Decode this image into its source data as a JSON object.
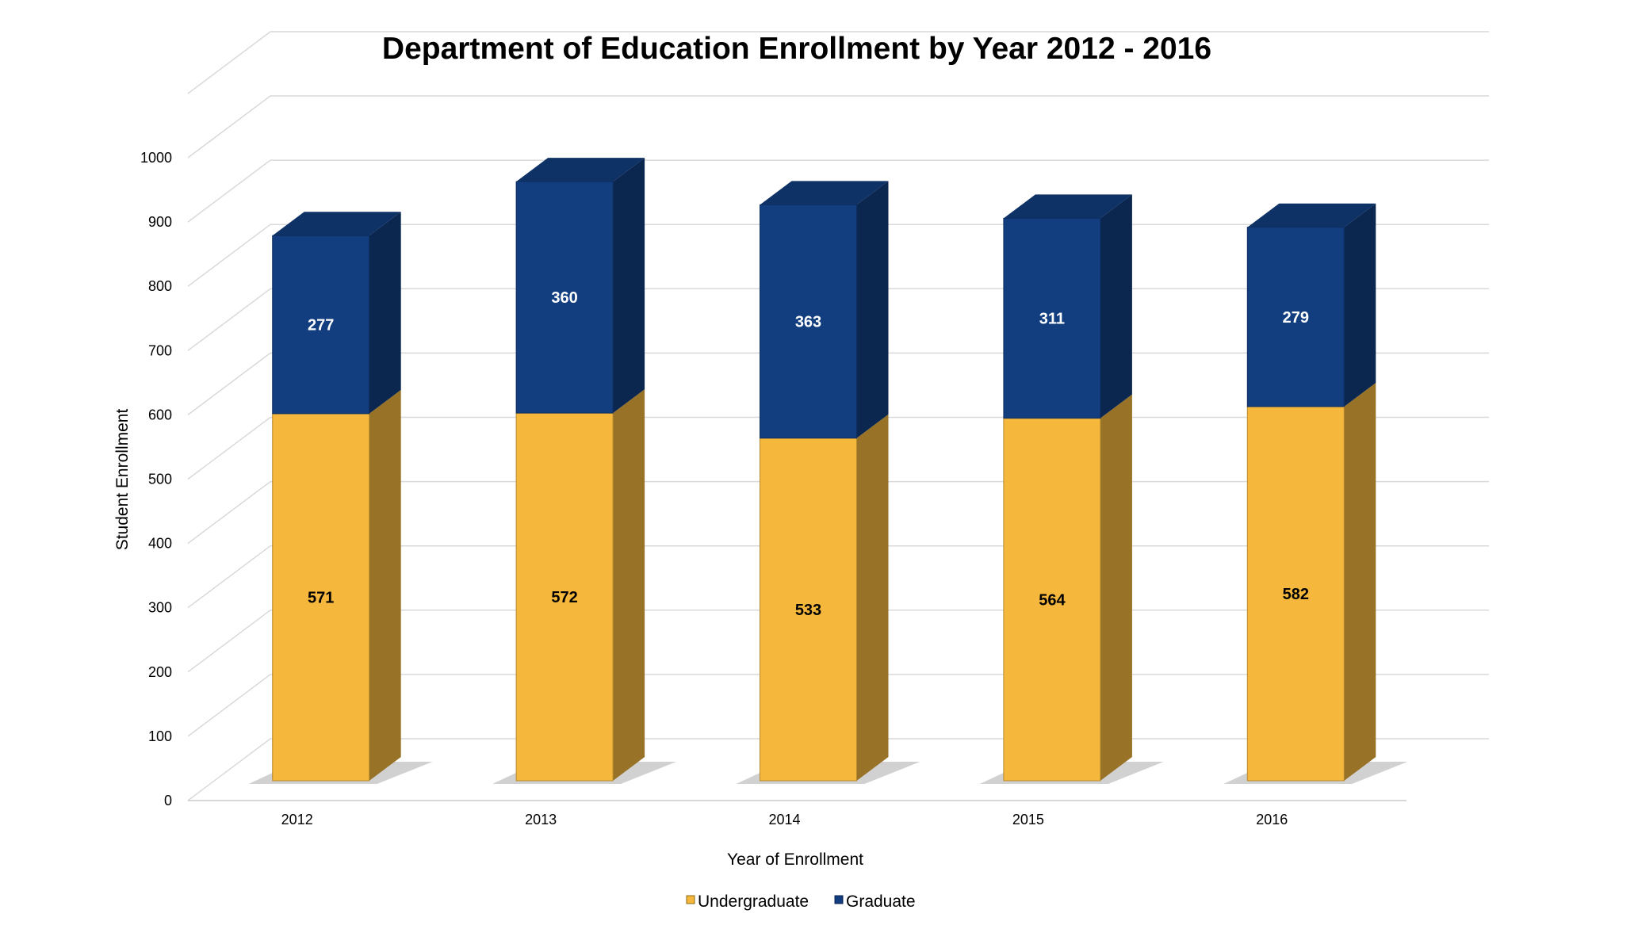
{
  "chart_data": {
    "type": "bar",
    "stacked": true,
    "three_d": true,
    "title": "Department of Education Enrollment by Year 2012 - 2016",
    "xlabel": "Year of Enrollment",
    "ylabel": "Student Enrollment",
    "categories": [
      "2012",
      "2013",
      "2014",
      "2015",
      "2016"
    ],
    "series": [
      {
        "name": "Undergraduate",
        "values": [
          571,
          572,
          533,
          564,
          582
        ],
        "color": "#f5b83d",
        "label_color": "#000000"
      },
      {
        "name": "Graduate",
        "values": [
          277,
          360,
          363,
          311,
          279
        ],
        "color": "#123e80",
        "label_color": "#ffffff"
      }
    ],
    "ylim": [
      0,
      1000
    ],
    "yticks": [
      "0",
      "100",
      "200",
      "300",
      "400",
      "500",
      "600",
      "700",
      "800",
      "900",
      "1000"
    ],
    "grid": true,
    "legend": "bottom"
  }
}
